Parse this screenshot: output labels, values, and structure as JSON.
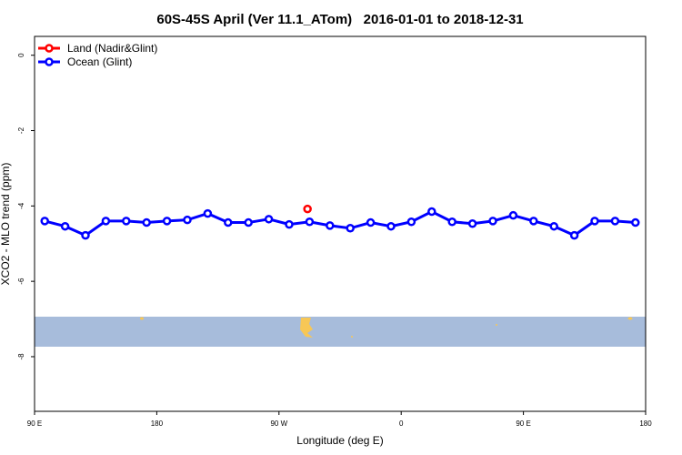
{
  "chart_data": {
    "type": "line",
    "title": "60S-45S April (Ver 11.1_ATom)   2016-01-01 to 2018-12-31",
    "xlabel": "Longitude (deg E)",
    "ylabel": "XCO2 - MLO trend (ppm)",
    "xlim": [
      90,
      540
    ],
    "ylim": [
      -9.45,
      0.5
    ],
    "xticks": [
      {
        "value": 90,
        "label": "90 E"
      },
      {
        "value": 180,
        "label": "180"
      },
      {
        "value": 270,
        "label": "90 W"
      },
      {
        "value": 360,
        "label": "0"
      },
      {
        "value": 450,
        "label": "90 E"
      },
      {
        "value": 540,
        "label": "180"
      }
    ],
    "yticks": [
      0,
      -2,
      -4,
      -6,
      -8
    ],
    "legend": "top-left",
    "series": [
      {
        "name": "Land (Nadir&Glint)",
        "color": "#ff0000",
        "x": [
          291
        ],
        "values": [
          -4.08
        ]
      },
      {
        "name": "Ocean (Glint)",
        "color": "#0000ff",
        "x": [
          97.5,
          112.5,
          127.5,
          142.5,
          157.5,
          172.5,
          187.5,
          202.5,
          217.5,
          232.5,
          247.5,
          262.5,
          277.5,
          292.5,
          307.5,
          322.5,
          337.5,
          352.5,
          367.5,
          382.5,
          397.5,
          412.5,
          427.5,
          442.5,
          457.5,
          472.5,
          487.5,
          502.5,
          517.5,
          532.5
        ],
        "values": [
          -4.4,
          -4.54,
          -4.78,
          -4.4,
          -4.4,
          -4.44,
          -4.4,
          -4.37,
          -4.2,
          -4.44,
          -4.44,
          -4.35,
          -4.49,
          -4.42,
          -4.52,
          -4.59,
          -4.44,
          -4.54,
          -4.42,
          -4.15,
          -4.42,
          -4.47,
          -4.4,
          -4.25,
          -4.4,
          -4.54,
          -4.78,
          -4.4,
          -4.4,
          -4.44
        ]
      }
    ]
  }
}
